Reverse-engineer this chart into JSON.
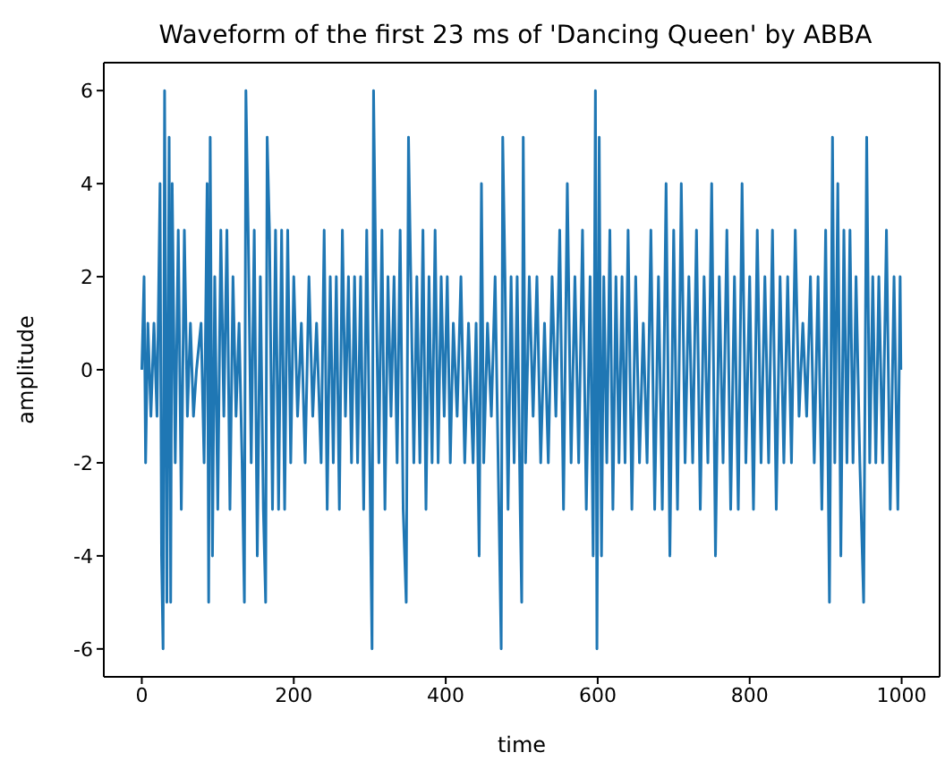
{
  "chart_data": {
    "type": "line",
    "title": "Waveform of the first 23 ms  of 'Dancing Queen' by ABBA",
    "xlabel": "time",
    "ylabel": "amplitude",
    "x": [
      0,
      3,
      5,
      8,
      12,
      16,
      20,
      24,
      26,
      28,
      30,
      33,
      36,
      38,
      40,
      44,
      48,
      52,
      56,
      60,
      64,
      68,
      72,
      78,
      82,
      86,
      88,
      90,
      93,
      96,
      100,
      104,
      108,
      112,
      116,
      120,
      124,
      128,
      132,
      135,
      137,
      140,
      144,
      148,
      152,
      156,
      160,
      163,
      165,
      168,
      172,
      176,
      180,
      184,
      188,
      192,
      196,
      200,
      205,
      210,
      215,
      220,
      225,
      230,
      236,
      240,
      244,
      248,
      252,
      256,
      260,
      264,
      268,
      272,
      276,
      280,
      284,
      288,
      292,
      296,
      300,
      303,
      305,
      308,
      312,
      316,
      320,
      324,
      328,
      332,
      336,
      340,
      344,
      348,
      351,
      354,
      358,
      362,
      366,
      370,
      374,
      378,
      382,
      386,
      390,
      394,
      398,
      402,
      406,
      410,
      415,
      420,
      425,
      430,
      436,
      440,
      444,
      447,
      450,
      455,
      460,
      465,
      470,
      473,
      475,
      478,
      482,
      486,
      490,
      494,
      498,
      500,
      502,
      505,
      510,
      515,
      520,
      525,
      530,
      535,
      540,
      545,
      550,
      555,
      560,
      565,
      570,
      575,
      580,
      585,
      590,
      594,
      597,
      599,
      602,
      605,
      608,
      612,
      616,
      620,
      624,
      628,
      632,
      636,
      640,
      645,
      650,
      655,
      660,
      665,
      670,
      675,
      680,
      685,
      690,
      695,
      700,
      705,
      710,
      715,
      720,
      725,
      730,
      735,
      740,
      745,
      750,
      755,
      760,
      765,
      770,
      775,
      780,
      785,
      790,
      795,
      800,
      805,
      810,
      815,
      820,
      825,
      830,
      835,
      840,
      845,
      850,
      855,
      860,
      865,
      870,
      875,
      880,
      885,
      890,
      895,
      900,
      905,
      909,
      912,
      916,
      920,
      924,
      928,
      932,
      936,
      940,
      945,
      950,
      954,
      958,
      962,
      966,
      970,
      975,
      980,
      985,
      990,
      995,
      998,
      999
    ],
    "series": [
      {
        "color": "#1f77b4",
        "values": [
          0,
          2,
          -2,
          1,
          -1,
          1,
          -1,
          4,
          -4,
          -6,
          6,
          -5,
          5,
          -5,
          4,
          -2,
          3,
          -3,
          3,
          -1,
          1,
          -1,
          0,
          1,
          -2,
          4,
          -5,
          5,
          -4,
          2,
          -3,
          3,
          -1,
          3,
          -3,
          2,
          -1,
          1,
          -2,
          -5,
          6,
          3,
          -2,
          3,
          -4,
          2,
          -3,
          -5,
          5,
          3,
          -3,
          3,
          -3,
          3,
          -3,
          3,
          -2,
          2,
          -1,
          1,
          -2,
          2,
          -1,
          1,
          -2,
          3,
          -3,
          2,
          -2,
          2,
          -3,
          3,
          -1,
          2,
          -2,
          2,
          -2,
          2,
          -3,
          3,
          -2,
          -6,
          6,
          2,
          -2,
          3,
          -3,
          2,
          -1,
          2,
          -2,
          3,
          -3,
          -5,
          5,
          2,
          -2,
          2,
          -2,
          3,
          -3,
          2,
          -2,
          3,
          -2,
          2,
          -1,
          2,
          -2,
          1,
          -1,
          2,
          -2,
          1,
          -2,
          1,
          -4,
          4,
          -2,
          1,
          -1,
          2,
          -3,
          -6,
          5,
          2,
          -3,
          2,
          -2,
          2,
          -3,
          -5,
          5,
          -2,
          2,
          -1,
          2,
          -2,
          1,
          -2,
          2,
          -1,
          3,
          -3,
          4,
          -2,
          2,
          -2,
          3,
          -3,
          2,
          -4,
          6,
          -6,
          5,
          -4,
          2,
          -2,
          3,
          -3,
          2,
          -2,
          2,
          -2,
          3,
          -3,
          2,
          -2,
          1,
          -2,
          3,
          -3,
          2,
          -3,
          4,
          -4,
          3,
          -3,
          4,
          -2,
          2,
          -2,
          3,
          -3,
          2,
          -2,
          4,
          -4,
          2,
          -2,
          3,
          -3,
          2,
          -3,
          4,
          -2,
          2,
          -3,
          3,
          -2,
          2,
          -2,
          3,
          -3,
          2,
          -2,
          2,
          -2,
          3,
          -1,
          1,
          -1,
          2,
          -2,
          2,
          -3,
          3,
          -5,
          5,
          -2,
          4,
          -4,
          3,
          -2,
          3,
          -2,
          2,
          -2,
          -5,
          5,
          -2,
          2,
          -2,
          2,
          -2,
          3,
          -3,
          2,
          -3,
          2,
          0
        ]
      }
    ],
    "xlim": [
      -50,
      1050
    ],
    "xticks": [
      0,
      200,
      400,
      600,
      800,
      1000
    ],
    "ylim": [
      -6.6,
      6.6
    ],
    "yticks": [
      -6,
      -4,
      -2,
      0,
      2,
      4,
      6
    ]
  }
}
